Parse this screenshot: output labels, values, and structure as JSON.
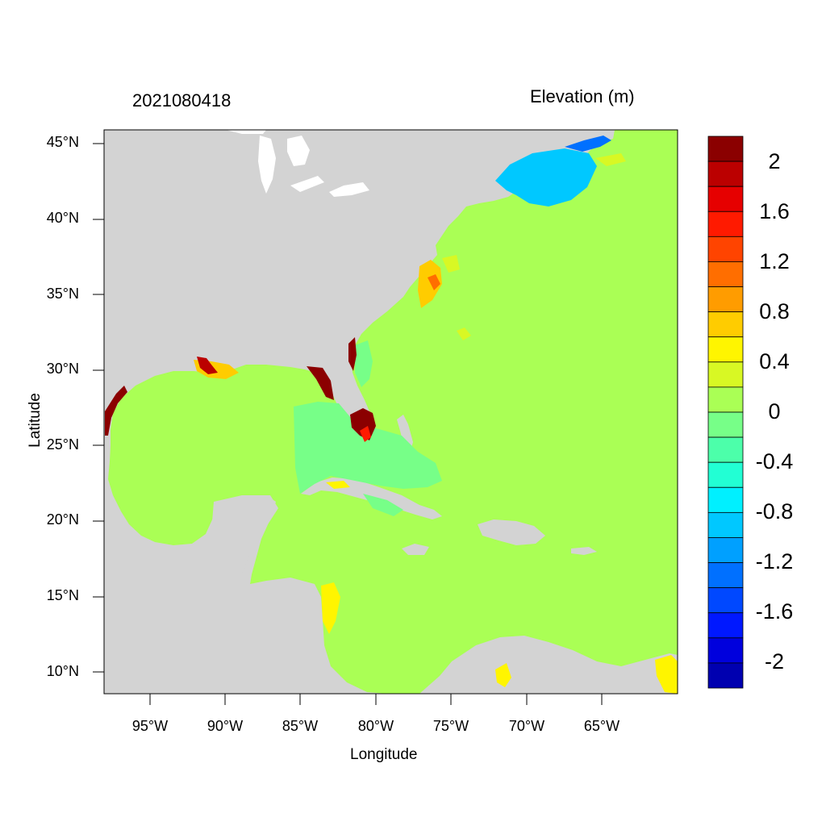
{
  "titles": {
    "left": "2021080418",
    "right": "Elevation (m)",
    "x_axis": "Longitude",
    "y_axis": "Latitude"
  },
  "axes": {
    "latitude_ticks": [
      "45°N",
      "40°N",
      "35°N",
      "30°N",
      "25°N",
      "20°N",
      "15°N",
      "10°N"
    ],
    "longitude_ticks": [
      "95°W",
      "90°W",
      "85°W",
      "80°W",
      "75°W",
      "70°W",
      "65°W"
    ]
  },
  "map": {
    "region": "Gulf of Mexico, Caribbean Sea and western North Atlantic",
    "extent": {
      "lon_min": -98,
      "lon_max": -60,
      "lat_min": 8.5,
      "lat_max": 46
    },
    "land_color": "#d3d3d3",
    "ocean_baseline_color": "#aaff55"
  },
  "colorbar": {
    "labels": [
      "2",
      "1.6",
      "1.2",
      "0.8",
      "0.4",
      "0",
      "-0.4",
      "-0.8",
      "-1.2",
      "-1.6",
      "-2"
    ],
    "colors": [
      "#8b0000",
      "#bb0000",
      "#e60000",
      "#ff1a00",
      "#ff4400",
      "#ff6e00",
      "#ff9c00",
      "#ffcc00",
      "#fff500",
      "#d8f824",
      "#aaff55",
      "#77ff88",
      "#4cffaa",
      "#22ffd4",
      "#00f0ff",
      "#00c8ff",
      "#00a0ff",
      "#0070ff",
      "#0048ff",
      "#0018ff",
      "#0000dd",
      "#0000b0"
    ]
  }
}
